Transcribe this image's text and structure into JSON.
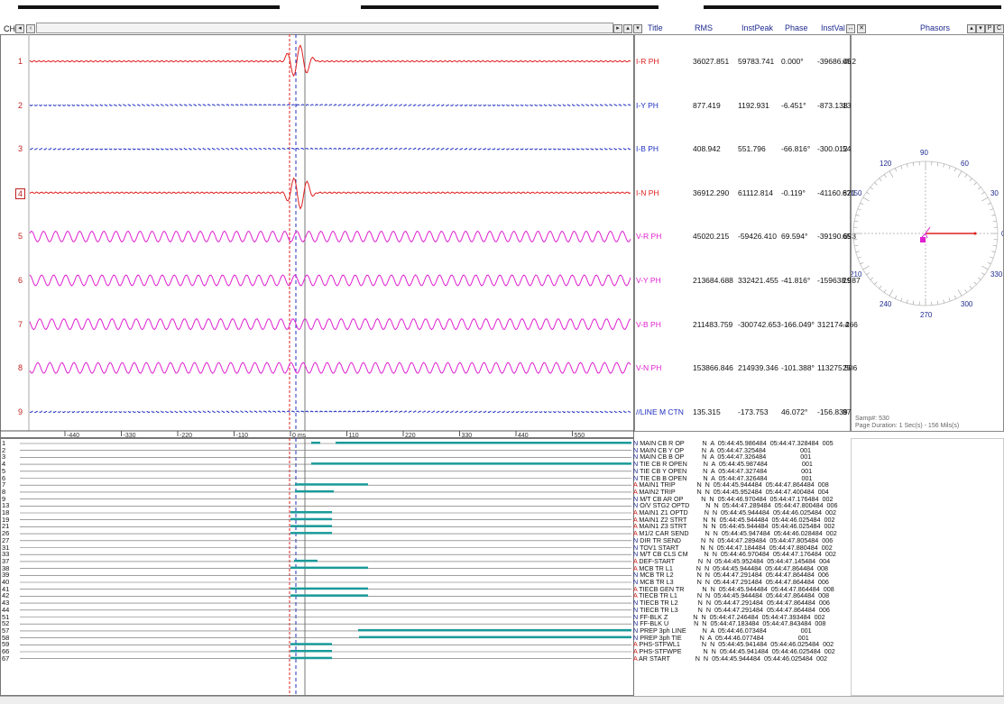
{
  "toolbar": {
    "ch_label": "CH"
  },
  "table": {
    "headers": [
      "Title",
      "RMS",
      "InstPeak",
      "Phase",
      "InstVal"
    ],
    "rows": [
      {
        "num": "1",
        "title": "I-R PH",
        "rms": "36027.851",
        "peak": "59783.741",
        "phase": "0.000°",
        "inst": "-39686.462",
        "extra": "65",
        "color": "#e02020"
      },
      {
        "num": "2",
        "title": "I-Y PH",
        "rms": "877.419",
        "peak": "1192.931",
        "phase": "-6.451°",
        "inst": "-873.138",
        "extra": "13",
        "color": "#2030c0"
      },
      {
        "num": "3",
        "title": "I-B PH",
        "rms": "408.942",
        "peak": "551.796",
        "phase": "-66.816°",
        "inst": "-300.012",
        "extra": "54",
        "color": "#2030c0"
      },
      {
        "num": "4",
        "title": "I-N PH",
        "rms": "36912.290",
        "peak": "61112.814",
        "phase": "-0.119°",
        "inst": "-41160.821",
        "extra": "67",
        "color": "#e02020"
      },
      {
        "num": "5",
        "title": "V-R PH",
        "rms": "45020.215",
        "peak": "-59426.410",
        "phase": "69.594°",
        "inst": "-39190.693",
        "extra": "65",
        "color": "#e020d0"
      },
      {
        "num": "6",
        "title": "V-Y PH",
        "rms": "213684.688",
        "peak": "332421.455",
        "phase": "-41.816°",
        "inst": "-159638.987",
        "extra": "29",
        "color": "#e020d0"
      },
      {
        "num": "7",
        "title": "V-B PH",
        "rms": "211483.759",
        "peak": "-300742.653",
        "phase": "-166.049°",
        "inst": "312174.466",
        "extra": "-2",
        "color": "#e020d0"
      },
      {
        "num": "8",
        "title": "V-N PH",
        "rms": "153866.846",
        "peak": "214939.346",
        "phase": "-101.388°",
        "inst": "113275.506",
        "extra": "25",
        "color": "#e020d0"
      },
      {
        "num": "9",
        "title": "//LINE M CTN",
        "rms": "135.315",
        "peak": "-173.753",
        "phase": "46.072°",
        "inst": "-156.839",
        "extra": "87",
        "color": "#2030c0"
      }
    ]
  },
  "phasors": {
    "title": "Phasors",
    "angles": [
      "90",
      "60",
      "30",
      "0",
      "330",
      "300",
      "270",
      "240",
      "210",
      "180",
      "150",
      "120"
    ],
    "samp": "Samp#: 530",
    "duration": "Page Duration: 1 Sec(s) - 156 Mils(s)"
  },
  "time_axis": {
    "labels": [
      "-440",
      "-330",
      "-220",
      "-110",
      "0 ms",
      "110",
      "220",
      "330",
      "440",
      "550"
    ]
  },
  "digital": {
    "nums": [
      "1",
      "2",
      "3",
      "4",
      "5",
      "6",
      "7",
      "8",
      "9",
      "13",
      "18",
      "19",
      "21",
      "26",
      "27",
      "31",
      "33",
      "37",
      "38",
      "39",
      "40",
      "41",
      "42",
      "43",
      "44",
      "51",
      "52",
      "57",
      "58",
      "59",
      "66",
      "67"
    ],
    "rows": [
      {
        "t": "N MAIN CB R OP",
        "a": "N  A",
        "s": "05:44:45.986484",
        "e": "05:44:47.328484",
        "c": "005"
      },
      {
        "t": "N MAIN CB Y OP",
        "a": "N  A",
        "s": "05:44:47.325484",
        "e": "",
        "c": "001"
      },
      {
        "t": "N MAIN CB B OP",
        "a": "N  A",
        "s": "05:44:47.326484",
        "e": "",
        "c": "001"
      },
      {
        "t": "N TIE CB R OPEN",
        "a": "N  A",
        "s": "05:44:45.987484",
        "e": "",
        "c": "001"
      },
      {
        "t": "N TIE CB Y OPEN",
        "a": "N  A",
        "s": "05:44:47.327484",
        "e": "",
        "c": "001"
      },
      {
        "t": "N TIE CB B OPEN",
        "a": "N  A",
        "s": "05:44:47.326484",
        "e": "",
        "c": "001"
      },
      {
        "t": "A MAIN1 TRIP",
        "a": "N  N",
        "s": "05:44:45.944484",
        "e": "05:44:47.864484",
        "c": "008"
      },
      {
        "t": "A MAIN2 TRIP",
        "a": "N  N",
        "s": "05:44:45.952484",
        "e": "05:44:47.400484",
        "c": "004"
      },
      {
        "t": "N M/T CB AR OP",
        "a": "N  N",
        "s": "05:44:46.970484",
        "e": "05:44:47.176484",
        "c": "002"
      },
      {
        "t": "N O/V STG2 OPTD",
        "a": "N  N",
        "s": "05:44:47.289484",
        "e": "05:44:47.800484",
        "c": "006"
      },
      {
        "t": "A MAIN1 Z1 OPTD",
        "a": "N  N",
        "s": "05:44:45.944484",
        "e": "05:44:46.025484",
        "c": "002"
      },
      {
        "t": "A MAIN1 Z2 STRT",
        "a": "N  N",
        "s": "05:44:45.944484",
        "e": "05:44:46.025484",
        "c": "002"
      },
      {
        "t": "A MAIN1 Z3 STRT",
        "a": "N  N",
        "s": "05:44:45.944484",
        "e": "05:44:46.025484",
        "c": "002"
      },
      {
        "t": "A M1/2 CAR SEND",
        "a": "N  N",
        "s": "05:44:45.947484",
        "e": "05:44:46.028484",
        "c": "002"
      },
      {
        "t": "N DIR TR SEND",
        "a": "N  N",
        "s": "05:44:47.289484",
        "e": "05:44:47.805484",
        "c": "006"
      },
      {
        "t": "N TOV1 START",
        "a": "N  N",
        "s": "05:44:47.184484",
        "e": "05:44:47.880484",
        "c": "002"
      },
      {
        "t": "N M/T CB CLS CM",
        "a": "N  N",
        "s": "05:44:46.970484",
        "e": "05:44:47.176484",
        "c": "002"
      },
      {
        "t": "A DEF-START",
        "a": "N  N",
        "s": "05:44:45.952484",
        "e": "05:44:47.145484",
        "c": "004"
      },
      {
        "t": "A MCB TR L1",
        "a": "N  N",
        "s": "05:44:45.944484",
        "e": "05:44:47.864484",
        "c": "008"
      },
      {
        "t": "N MCB TR L2",
        "a": "N  N",
        "s": "05:44:47.291484",
        "e": "05:44:47.864484",
        "c": "006"
      },
      {
        "t": "N MCB TR L3",
        "a": "N  N",
        "s": "05:44:47.291484",
        "e": "05:44:47.864484",
        "c": "006"
      },
      {
        "t": "A TIECB GEN TR",
        "a": "N  N",
        "s": "05:44:45.944484",
        "e": "05:44:47.864484",
        "c": "008"
      },
      {
        "t": "A TIECB TR L1",
        "a": "N  N",
        "s": "05:44:45.944484",
        "e": "05:44:47.864484",
        "c": "008"
      },
      {
        "t": "N TIECB TR L2",
        "a": "N  N",
        "s": "05:44:47.291484",
        "e": "05:44:47.864484",
        "c": "006"
      },
      {
        "t": "N TIECB TR L3",
        "a": "N  N",
        "s": "05:44:47.291484",
        "e": "05:44:47.864484",
        "c": "006"
      },
      {
        "t": "N FF-BLK Z",
        "a": "N  N",
        "s": "05:44:47.246484",
        "e": "05:44:47.393484",
        "c": "002"
      },
      {
        "t": "N FF-BLK U",
        "a": "N  N",
        "s": "05:44:47.183484",
        "e": "05:44:47.843484",
        "c": "008"
      },
      {
        "t": "N PREP 3ph LINE",
        "a": "N  A",
        "s": "05:44:46.073484",
        "e": "",
        "c": "001"
      },
      {
        "t": "N PREP 3ph TIE",
        "a": "N  A",
        "s": "05:44:46.077484",
        "e": "",
        "c": "001"
      },
      {
        "t": "A PHS-STFWL1",
        "a": "N  N",
        "s": "05:44:45.941484",
        "e": "05:44:46.025484",
        "c": "002"
      },
      {
        "t": "A PHS-STFWPE",
        "a": "N  N",
        "s": "05:44:45.941484",
        "e": "05:44:46.025484",
        "c": "002"
      },
      {
        "t": "A AR START",
        "a": "N  N",
        "s": "05:44:45.944484",
        "e": "05:44:46.025484",
        "c": "002"
      }
    ]
  },
  "colors": {
    "red": "#e02020",
    "blue": "#2030c0",
    "magenta": "#e020d0",
    "teal": "#1a9a9a",
    "header": "#1e2b8f"
  }
}
